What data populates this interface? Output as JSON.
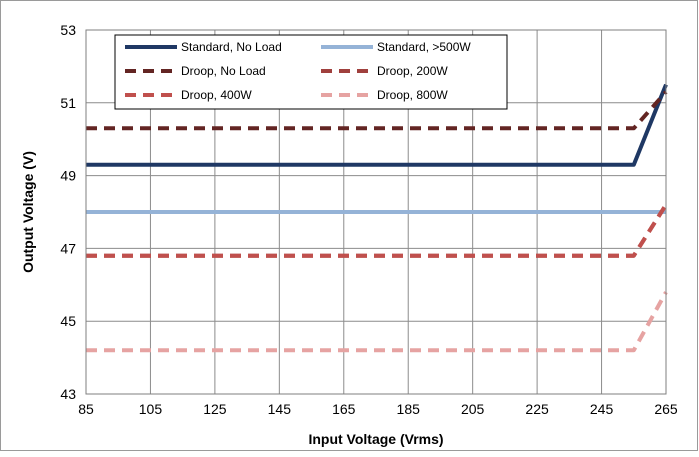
{
  "chart_data": {
    "type": "line",
    "title": "",
    "xlabel": "Input Voltage (Vrms)",
    "ylabel": "Output Voltage (V)",
    "xlim": [
      85,
      265
    ],
    "ylim": [
      43,
      53
    ],
    "xticks": [
      85,
      105,
      125,
      145,
      165,
      185,
      205,
      225,
      245,
      265
    ],
    "yticks": [
      43,
      45,
      47,
      49,
      51,
      53
    ],
    "grid": true,
    "legend": "top-left",
    "series": [
      {
        "name": "Standard, No Load",
        "color": "#1f3864",
        "dash": "solid",
        "x": [
          85,
          255,
          265
        ],
        "y": [
          49.3,
          49.3,
          51.5
        ]
      },
      {
        "name": "Standard, >500W",
        "color": "#95b3d7",
        "dash": "solid",
        "x": [
          85,
          265
        ],
        "y": [
          48.0,
          48.0
        ]
      },
      {
        "name": "Droop, No Load",
        "color": "#632523",
        "dash": "dashed",
        "x": [
          85,
          255,
          265
        ],
        "y": [
          50.3,
          50.3,
          51.3
        ]
      },
      {
        "name": "Droop, 200W",
        "color": "#a0403d",
        "dash": "dashed",
        "x": [
          85,
          255,
          265
        ],
        "y": [
          46.8,
          46.8,
          48.2
        ]
      },
      {
        "name": "Droop, 400W",
        "color": "#c0504d",
        "dash": "dashed",
        "x": [
          85,
          255,
          265
        ],
        "y": [
          46.8,
          46.8,
          48.2
        ]
      },
      {
        "name": "Droop, 800W",
        "color": "#e6a3a2",
        "dash": "dashed",
        "x": [
          85,
          255,
          265
        ],
        "y": [
          44.2,
          44.2,
          45.8
        ]
      }
    ]
  }
}
